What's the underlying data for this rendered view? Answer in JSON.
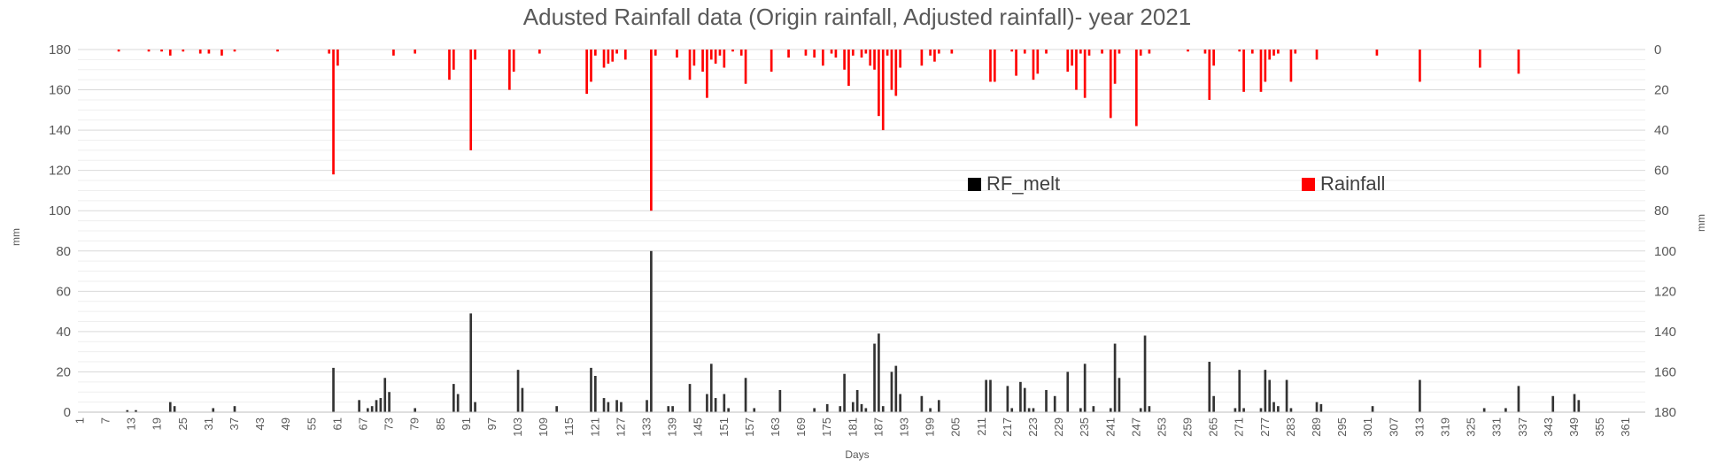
{
  "chart_data": {
    "type": "bar",
    "title": "Adusted Rainfall data (Origin rainfall, Adjusted rainfall)- year 2021",
    "xlabel": "Days",
    "ylabel_left": "mm",
    "ylabel_right": "mm",
    "ylim_left": [
      0,
      180
    ],
    "ylim_right": [
      180,
      0
    ],
    "y_ticks_left": [
      "0",
      "20",
      "40",
      "60",
      "80",
      "100",
      "120",
      "140",
      "160",
      "180"
    ],
    "y_ticks_right": [
      "180",
      "160",
      "140",
      "120",
      "100",
      "80",
      "60",
      "40",
      "20",
      "0"
    ],
    "x_range": [
      1,
      365
    ],
    "x_tick_labels": [
      "1",
      "7",
      "13",
      "19",
      "25",
      "31",
      "37",
      "43",
      "49",
      "55",
      "61",
      "67",
      "73",
      "79",
      "85",
      "91",
      "97",
      "103",
      "109",
      "115",
      "121",
      "127",
      "133",
      "139",
      "145",
      "151",
      "157",
      "163",
      "169",
      "175",
      "181",
      "187",
      "193",
      "199",
      "205",
      "211",
      "217",
      "223",
      "229",
      "235",
      "241",
      "247",
      "253",
      "259",
      "265",
      "271",
      "277",
      "283",
      "289",
      "295",
      "301",
      "307",
      "313",
      "319",
      "325",
      "331",
      "337",
      "343",
      "349",
      "355",
      "361"
    ],
    "grid": true,
    "legend": [
      {
        "name": "RF_melt",
        "color": "#000000"
      },
      {
        "name": "Rainfall",
        "color": "#ff0000"
      }
    ],
    "legend_placement": "center-right",
    "series": [
      {
        "name": "RF_melt",
        "axis": "left",
        "direction": "up",
        "color": "#333333",
        "x": [
          12,
          14,
          22,
          23,
          32,
          37,
          60,
          66,
          68,
          69,
          70,
          71,
          72,
          73,
          79,
          88,
          89,
          92,
          93,
          103,
          104,
          112,
          120,
          121,
          123,
          124,
          126,
          127,
          133,
          134,
          138,
          139,
          143,
          147,
          148,
          149,
          151,
          152,
          156,
          158,
          164,
          172,
          175,
          178,
          179,
          181,
          182,
          183,
          184,
          186,
          187,
          188,
          190,
          191,
          192,
          197,
          199,
          201,
          212,
          213,
          217,
          218,
          220,
          221,
          222,
          223,
          226,
          228,
          231,
          234,
          235,
          237,
          241,
          242,
          243,
          248,
          249,
          250,
          264,
          265,
          270,
          271,
          272,
          276,
          277,
          278,
          279,
          280,
          282,
          283,
          289,
          290,
          302,
          313,
          328,
          333,
          336,
          344,
          349,
          350
        ],
        "values": [
          1,
          1,
          5,
          3,
          2,
          3,
          22,
          6,
          2,
          3,
          6,
          7,
          17,
          10,
          2,
          14,
          9,
          49,
          5,
          21,
          12,
          3,
          22,
          18,
          7,
          5,
          6,
          5,
          6,
          80,
          3,
          3,
          14,
          9,
          24,
          7,
          9,
          2,
          17,
          2,
          11,
          2,
          4,
          3,
          19,
          5,
          11,
          4,
          2,
          34,
          39,
          3,
          20,
          23,
          9,
          8,
          2,
          6,
          16,
          16,
          13,
          2,
          15,
          12,
          2,
          2,
          11,
          8,
          20,
          2,
          24,
          3,
          2,
          34,
          17,
          2,
          38,
          3,
          25,
          8,
          2,
          21,
          2,
          2,
          21,
          16,
          5,
          3,
          16,
          2,
          5,
          4,
          3,
          16,
          2,
          2,
          13,
          8,
          9,
          6
        ]
      },
      {
        "name": "Rainfall",
        "axis": "right",
        "direction": "down",
        "color": "#ff0000",
        "x": [
          10,
          17,
          20,
          22,
          25,
          29,
          31,
          34,
          37,
          47,
          59,
          60,
          61,
          74,
          79,
          87,
          88,
          92,
          93,
          101,
          102,
          108,
          119,
          120,
          121,
          123,
          124,
          125,
          126,
          128,
          134,
          135,
          140,
          143,
          144,
          146,
          147,
          148,
          149,
          150,
          151,
          153,
          155,
          156,
          162,
          166,
          170,
          172,
          174,
          176,
          177,
          179,
          180,
          181,
          183,
          184,
          185,
          186,
          187,
          188,
          189,
          190,
          191,
          192,
          197,
          199,
          200,
          201,
          204,
          213,
          214,
          218,
          219,
          221,
          223,
          224,
          226,
          231,
          232,
          233,
          234,
          235,
          236,
          239,
          241,
          242,
          243,
          247,
          248,
          250,
          259,
          263,
          264,
          265,
          271,
          272,
          274,
          276,
          277,
          278,
          279,
          280,
          283,
          284,
          289,
          303,
          313,
          327,
          336
        ],
        "values": [
          1,
          1,
          1,
          3,
          1,
          2,
          2,
          3,
          1,
          1,
          2,
          62,
          8,
          3,
          2,
          15,
          10,
          50,
          5,
          20,
          11,
          2,
          22,
          16,
          3,
          9,
          7,
          6,
          2,
          5,
          80,
          3,
          4,
          15,
          8,
          11,
          24,
          5,
          7,
          3,
          9,
          1,
          3,
          17,
          11,
          4,
          3,
          4,
          8,
          2,
          4,
          10,
          18,
          3,
          4,
          2,
          8,
          10,
          33,
          40,
          3,
          20,
          23,
          9,
          8,
          3,
          6,
          2,
          2,
          16,
          16,
          1,
          13,
          2,
          15,
          12,
          2,
          11,
          8,
          20,
          2,
          24,
          3,
          2,
          34,
          17,
          2,
          38,
          3,
          2,
          1,
          2,
          25,
          8,
          1,
          21,
          2,
          21,
          16,
          5,
          3,
          2,
          16,
          2,
          5,
          3,
          16,
          9,
          12
        ]
      }
    ]
  }
}
